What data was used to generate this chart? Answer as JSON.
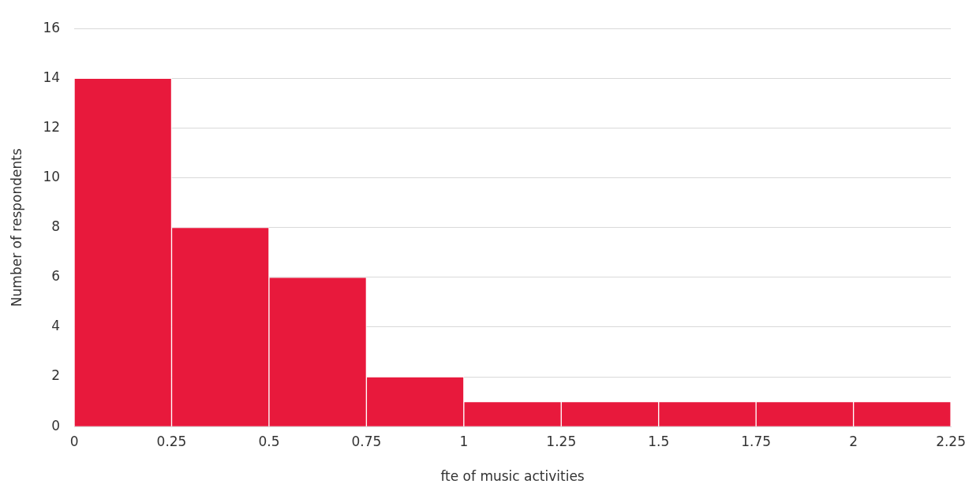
{
  "chart_data": {
    "type": "histogram",
    "xlabel": "fte of music activities",
    "ylabel": "Number of respondents",
    "bins": [
      0,
      0.25,
      0.5,
      0.75,
      1,
      1.25,
      1.5,
      1.75,
      2,
      2.25
    ],
    "values": [
      14,
      8,
      6,
      2,
      1,
      1,
      1,
      1,
      1
    ],
    "color": "#e8193c",
    "xlim": [
      0,
      2.25
    ],
    "xticks": [
      0,
      0.25,
      0.5,
      0.75,
      1,
      1.25,
      1.5,
      1.75,
      2,
      2.25
    ],
    "ylim": [
      0,
      16
    ],
    "yticks": [
      0,
      2,
      4,
      6,
      8,
      10,
      12,
      14,
      16
    ],
    "grid": "y"
  }
}
